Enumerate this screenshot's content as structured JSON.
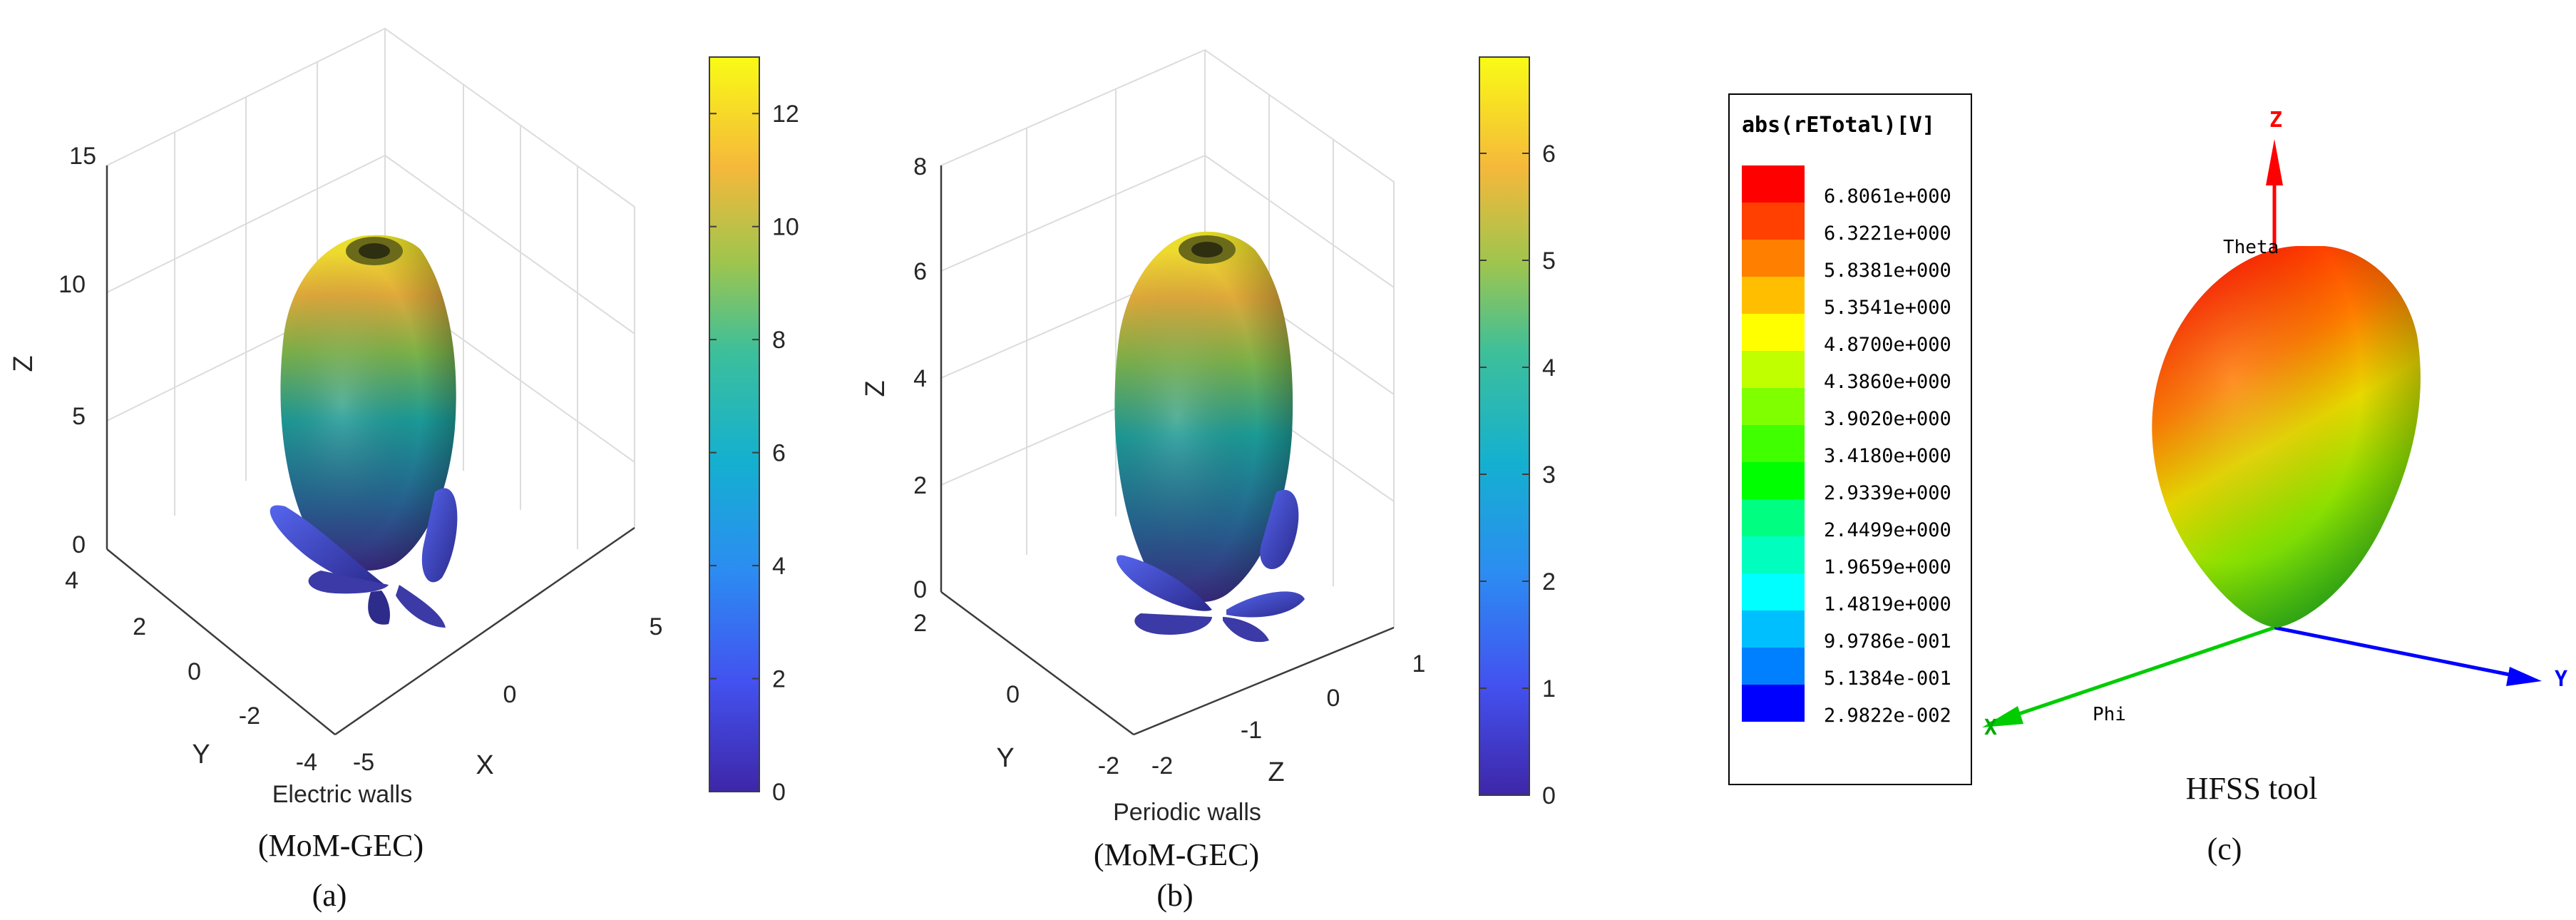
{
  "colors": {
    "parula_low": "#3e26a8",
    "parula_mid": "#1fa5c2",
    "parula_high": "#f9fb15",
    "hfss_red": "#ff0000",
    "hfss_blue": "#0000ff",
    "hfss_green": "#00d000"
  },
  "chart_data": [
    {
      "type": "3d-surface",
      "id": "a",
      "method": "(MoM-GEC)",
      "boundary": "Electric walls",
      "panel_label": "(a)",
      "zlabel": "Z",
      "ylabel": "Y",
      "xlabel": "X",
      "z_ticks": [
        "0",
        "5",
        "10",
        "15"
      ],
      "y_ticks": [
        "-4",
        "-2",
        "0",
        "2",
        "4"
      ],
      "x_ticks": [
        "-5",
        "0",
        "5"
      ],
      "zlim": [
        0,
        15
      ],
      "colorbar": {
        "min": 0,
        "max": 13,
        "ticks": [
          "0",
          "2",
          "4",
          "6",
          "8",
          "10",
          "12"
        ]
      }
    },
    {
      "type": "3d-surface",
      "id": "b",
      "method": "(MoM-GEC)",
      "boundary": "Periodic  walls",
      "panel_label": "(b)",
      "zlabel": "Z",
      "ylabel": "Y",
      "xlabel": "Z",
      "z_ticks": [
        "0",
        "2",
        "4",
        "6",
        "8"
      ],
      "y_ticks": [
        "-2",
        "0",
        "2"
      ],
      "x_ticks": [
        "-2",
        "-1",
        "0",
        "1"
      ],
      "zlim": [
        0,
        8
      ],
      "colorbar": {
        "min": 0,
        "max": 6.9,
        "ticks": [
          "0",
          "1",
          "2",
          "3",
          "4",
          "5",
          "6"
        ]
      }
    },
    {
      "type": "3d-surface",
      "id": "c",
      "tool": "HFSS tool",
      "panel_label": "(c)",
      "legend_title": "abs(rETotal)[V]",
      "legend_values": [
        "6.8061e+000",
        "6.3221e+000",
        "5.8381e+000",
        "5.3541e+000",
        "4.8700e+000",
        "4.3860e+000",
        "3.9020e+000",
        "3.4180e+000",
        "2.9339e+000",
        "2.4499e+000",
        "1.9659e+000",
        "1.4819e+000",
        "9.9786e-001",
        "5.1384e-001",
        "2.9822e-002"
      ],
      "legend_colors": [
        "#ff0000",
        "#ff4000",
        "#ff8000",
        "#ffbf00",
        "#ffff00",
        "#bfff00",
        "#80ff00",
        "#40ff00",
        "#00ff00",
        "#00ff80",
        "#00ffbf",
        "#00ffff",
        "#00bfff",
        "#0080ff",
        "#0000ff"
      ],
      "axis_labels": {
        "z": "Z",
        "y": "Y",
        "x": "X",
        "theta": "Theta",
        "phi": "Phi"
      }
    }
  ]
}
